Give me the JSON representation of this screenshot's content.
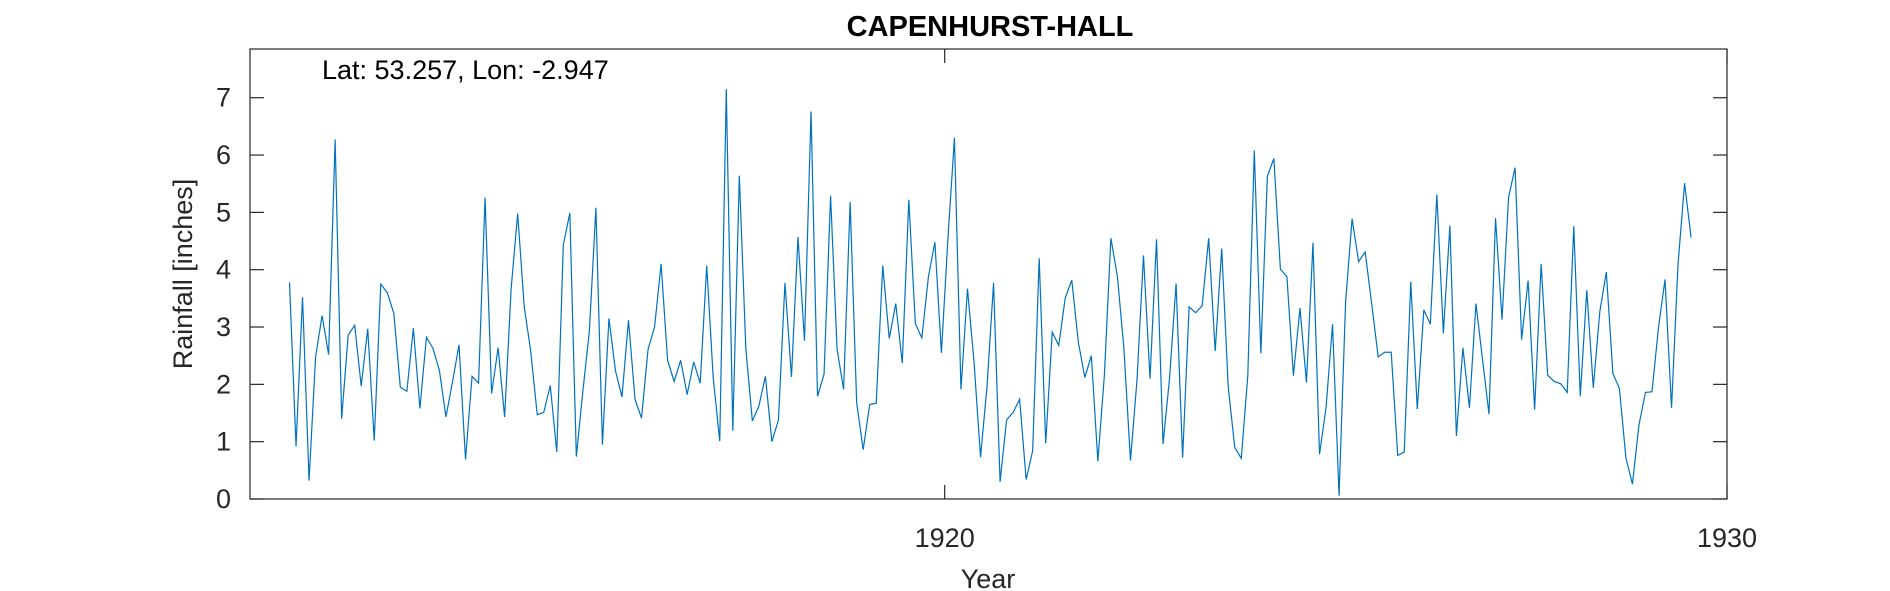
{
  "chart_data": {
    "type": "line",
    "title": "CAPENHURST-HALL",
    "annotation": "Lat: 53.257, Lon: -2.947",
    "xlabel": "Year",
    "ylabel": "Rainfall [inches]",
    "xlim": [
      1911.12,
      1930
    ],
    "ylim": [
      0,
      7.85
    ],
    "yticks": [
      0,
      1,
      2,
      3,
      4,
      5,
      6,
      7
    ],
    "xticks": [
      1920,
      1930
    ],
    "grid": false,
    "series": [
      {
        "color": "#0072BD",
        "x_start_year": 1911.625,
        "x_step": 0.08333,
        "values": [
          3.78,
          0.92,
          3.52,
          0.32,
          2.48,
          3.2,
          2.52,
          6.27,
          1.4,
          2.86,
          3.03,
          1.97,
          2.97,
          1.02,
          3.75,
          3.6,
          3.24,
          1.95,
          1.88,
          2.98,
          1.58,
          2.82,
          2.63,
          2.24,
          1.43,
          2.04,
          2.69,
          0.69,
          2.14,
          2.02,
          5.26,
          1.84,
          2.64,
          1.43,
          3.67,
          4.98,
          3.36,
          2.58,
          1.47,
          1.51,
          1.98,
          0.82,
          4.43,
          4.99,
          0.74,
          1.88,
          2.93,
          5.08,
          0.95,
          3.15,
          2.24,
          1.78,
          3.12,
          1.74,
          1.41,
          2.61,
          3.0,
          4.1,
          2.42,
          2.05,
          2.42,
          1.82,
          2.39,
          2.02,
          4.07,
          2.11,
          1.01,
          7.15,
          1.19,
          5.64,
          2.62,
          1.36,
          1.62,
          2.14,
          1.0,
          1.38,
          3.77,
          2.13,
          4.57,
          2.76,
          6.76,
          1.79,
          2.18,
          5.29,
          2.61,
          1.91,
          5.18,
          1.68,
          0.86,
          1.65,
          1.67,
          4.07,
          2.8,
          3.41,
          2.37,
          5.22,
          3.06,
          2.81,
          3.87,
          4.48,
          2.55,
          4.54,
          6.3,
          1.91,
          3.67,
          2.4,
          0.73,
          1.97,
          3.77,
          0.3,
          1.38,
          1.51,
          1.74,
          0.34,
          0.84,
          4.2,
          0.97,
          2.91,
          2.68,
          3.51,
          3.82,
          2.74,
          2.12,
          2.5,
          0.66,
          2.16,
          4.55,
          3.88,
          2.62,
          0.67,
          2.07,
          4.25,
          2.1,
          4.53,
          0.96,
          2.11,
          3.76,
          0.72,
          3.35,
          3.25,
          3.37,
          4.55,
          2.58,
          4.37,
          1.95,
          0.9,
          0.71,
          2.15,
          6.08,
          2.54,
          5.63,
          5.94,
          4.01,
          3.88,
          2.15,
          3.33,
          2.03,
          4.47,
          0.78,
          1.59,
          3.05,
          0.06,
          3.43,
          4.89,
          4.14,
          4.31,
          3.41,
          2.48,
          2.56,
          2.56,
          0.76,
          0.82,
          3.79,
          1.57,
          3.3,
          3.05,
          5.31,
          2.89,
          4.77,
          1.1,
          2.64,
          1.59,
          3.41,
          2.44,
          1.48,
          4.9,
          3.13,
          5.26,
          5.78,
          2.78,
          3.81,
          1.56,
          4.1,
          2.16,
          2.05,
          2.01,
          1.86,
          4.76,
          1.79,
          3.64,
          1.94,
          3.27,
          3.96,
          2.19,
          1.93,
          0.72,
          0.26,
          1.29,
          1.86,
          1.87,
          2.99,
          3.83,
          1.59,
          4.1,
          5.51,
          4.56
        ]
      }
    ]
  }
}
